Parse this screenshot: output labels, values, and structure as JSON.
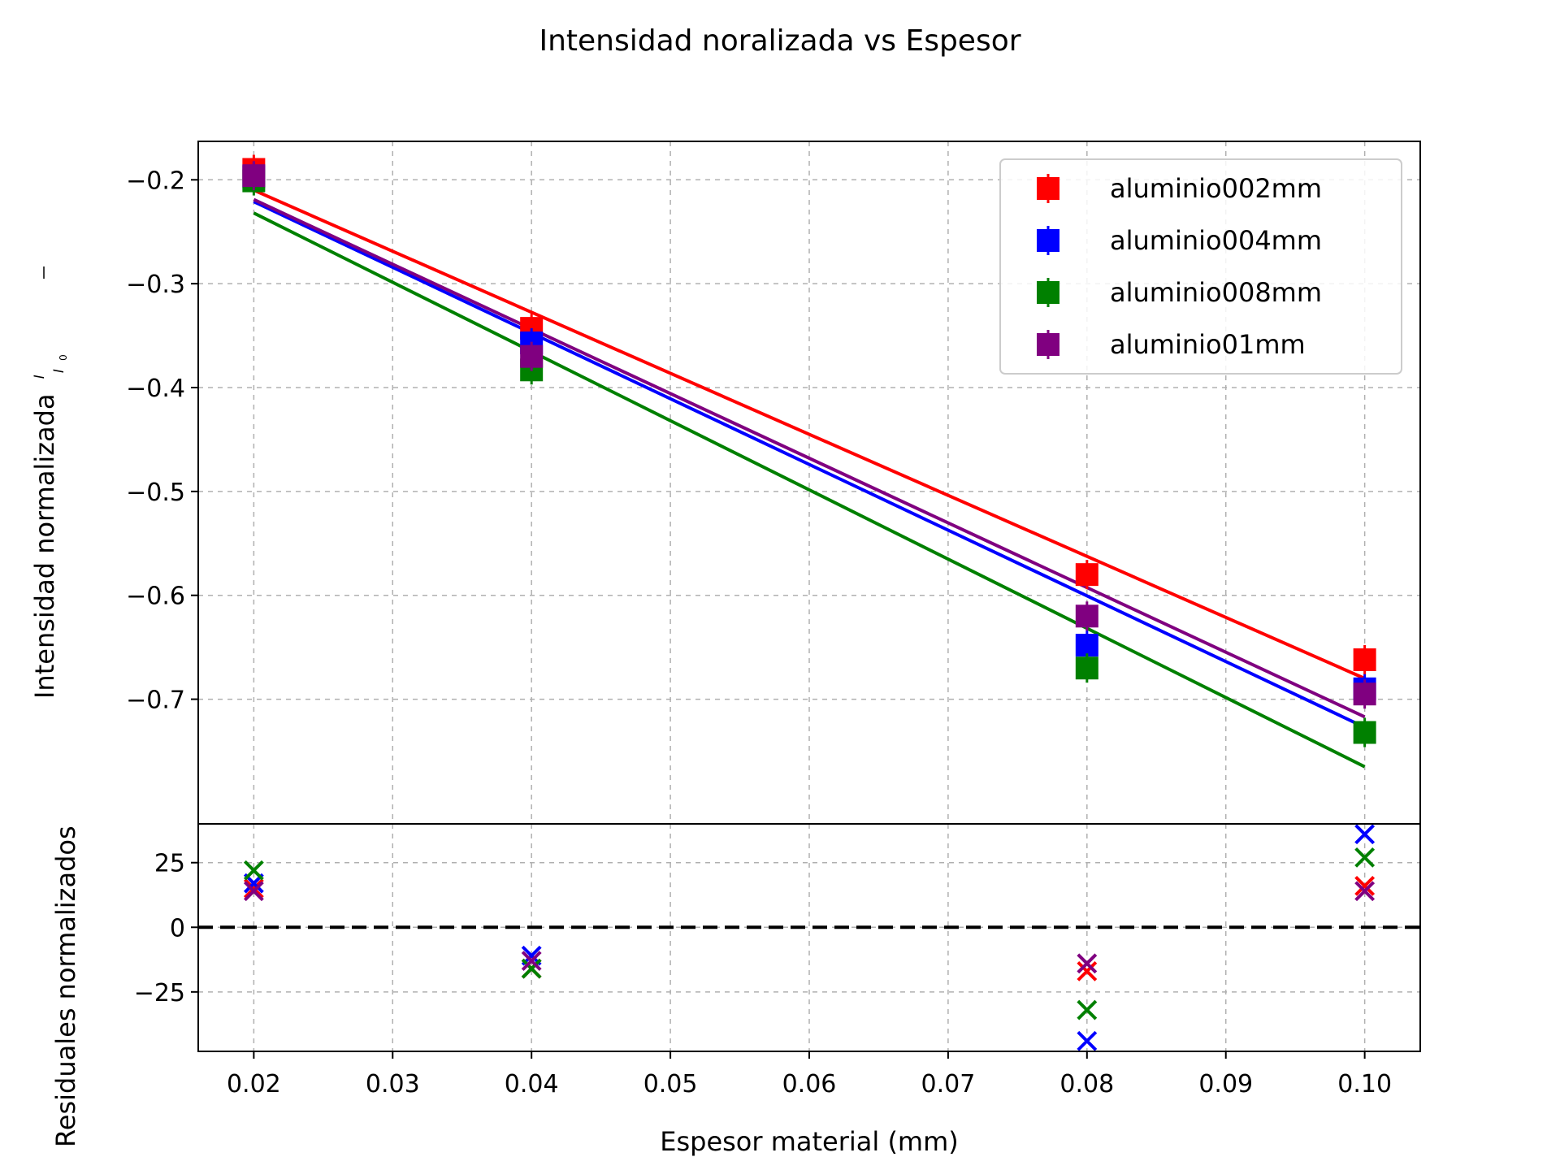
{
  "figure": {
    "title": "Intensidad noralizada vs Espesor"
  },
  "chart_data": [
    {
      "type": "scatter",
      "panel": "main",
      "ylabel_text": "Intensidad normalizada",
      "ylabel_frac_num": "I",
      "ylabel_frac_den": "I",
      "ylabel_frac_den_sub": "0",
      "xlim": [
        0.016,
        0.104
      ],
      "ylim": [
        -0.82,
        -0.163
      ],
      "yticks": [
        -0.2,
        -0.3,
        -0.4,
        -0.5,
        -0.6,
        -0.7
      ],
      "ytick_labels": [
        "−0.2",
        "−0.3",
        "−0.4",
        "−0.5",
        "−0.6",
        "−0.7"
      ],
      "grid": true,
      "legend_position": "upper right",
      "x": [
        0.02,
        0.04,
        0.08,
        0.1
      ],
      "series": [
        {
          "name": "aluminio002mm",
          "color": "#ff0000",
          "values": [
            -0.19,
            -0.343,
            -0.58,
            -0.662
          ],
          "fit": [
            -0.21,
            -0.68
          ]
        },
        {
          "name": "aluminio004mm",
          "color": "#0000ff",
          "values": [
            -0.197,
            -0.357,
            -0.648,
            -0.69
          ],
          "fit": [
            -0.221,
            -0.727
          ]
        },
        {
          "name": "aluminio008mm",
          "color": "#008000",
          "values": [
            -0.201,
            -0.383,
            -0.67,
            -0.732
          ],
          "fit": [
            -0.232,
            -0.765
          ]
        },
        {
          "name": "aluminio01mm",
          "color": "#800080",
          "values": [
            -0.196,
            -0.37,
            -0.62,
            -0.695
          ],
          "fit": [
            -0.219,
            -0.717
          ]
        }
      ]
    },
    {
      "type": "scatter",
      "panel": "residuals",
      "ylabel": "Residuales normalizados",
      "xlabel": "Espesor material (mm)",
      "xlim": [
        0.016,
        0.104
      ],
      "ylim": [
        -48,
        40
      ],
      "xticks": [
        0.02,
        0.03,
        0.04,
        0.05,
        0.06,
        0.07,
        0.08,
        0.09,
        0.1
      ],
      "xtick_labels": [
        "0.02",
        "0.03",
        "0.04",
        "0.05",
        "0.06",
        "0.07",
        "0.08",
        "0.09",
        "0.10"
      ],
      "yticks": [
        25,
        0,
        -25
      ],
      "ytick_labels": [
        "25",
        "0",
        "−25"
      ],
      "zero_line": 0,
      "grid": true,
      "x": [
        0.02,
        0.04,
        0.08,
        0.1
      ],
      "series": [
        {
          "color": "#ff0000",
          "values": [
            15,
            -16,
            -17,
            16
          ]
        },
        {
          "color": "#0000ff",
          "values": [
            17,
            -11,
            -44,
            36
          ]
        },
        {
          "color": "#008000",
          "values": [
            22,
            -16,
            -32,
            27
          ]
        },
        {
          "color": "#800080",
          "values": [
            14,
            -13,
            -14,
            14
          ]
        }
      ]
    }
  ]
}
